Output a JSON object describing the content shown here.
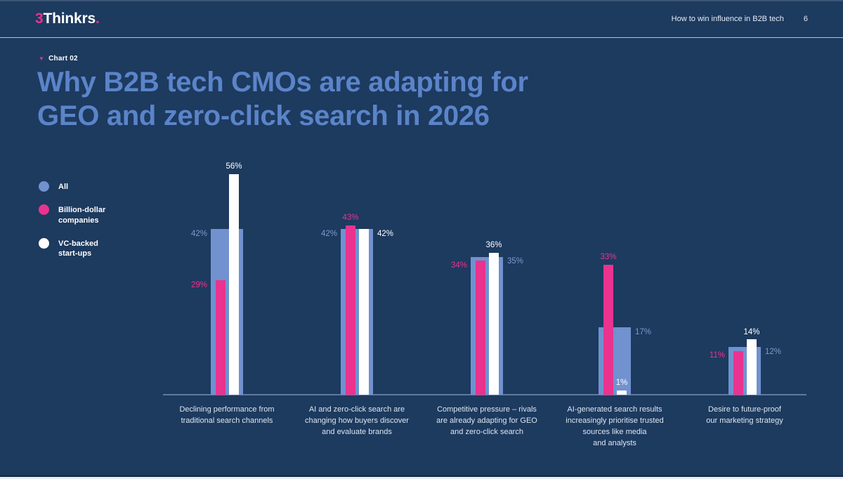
{
  "header": {
    "brand": {
      "prefix": "3",
      "name": "Thinkrs",
      "dot": "."
    },
    "doc_title": "How to win influence in B2B tech",
    "page_number": "6"
  },
  "eyebrow": {
    "marker": "▼",
    "label": "Chart 02"
  },
  "title": "Why B2B tech CMOs are adapting for\nGEO and zero-click search in 2026",
  "legend": {
    "items": [
      {
        "label": "All",
        "color": "#7191cf"
      },
      {
        "label": "Billion-dollar\ncompanies",
        "color": "#e9338f"
      },
      {
        "label": "VC-backed\nstart-ups",
        "color": "#ffffff"
      }
    ]
  },
  "chart_data": {
    "type": "bar",
    "unit": "%",
    "ylim": [
      0,
      60
    ],
    "grid": false,
    "legend_position": "left",
    "categories": [
      "Declining performance from\ntraditional search channels",
      "AI and zero-click search are\nchanging how buyers discover\nand evaluate brands",
      "Competitive pressure – rivals\nare already adapting for GEO\nand zero-click search",
      "AI-generated search results\nincreasingly prioritise trusted\nsources like media\nand analysts",
      "Desire to future-proof\nour marketing strategy"
    ],
    "series": [
      {
        "key": "all",
        "name": "All",
        "values": [
          42,
          42,
          35,
          17,
          12
        ],
        "color": "#7191cf",
        "label_color": "#8099cb",
        "value_label_placement": [
          "left",
          "left",
          "right",
          "right",
          "right"
        ]
      },
      {
        "key": "billion",
        "name": "Billion-dollar companies",
        "values": [
          29,
          43,
          34,
          33,
          11
        ],
        "color": "#e9338f",
        "label_color": "#e9338f",
        "value_label_placement": [
          "left",
          "above",
          "left",
          "above",
          "left"
        ]
      },
      {
        "key": "vc",
        "name": "VC-backed start-ups",
        "values": [
          56,
          42,
          36,
          1,
          14
        ],
        "color": "#ffffff",
        "label_color": "#ffffff",
        "value_label_placement": [
          "above",
          "right",
          "above",
          "above",
          "above"
        ]
      }
    ],
    "title": "Why B2B tech CMOs are adapting for GEO and zero-click search in 2026"
  },
  "colors": {
    "background": "#1d3a5f",
    "title_blue": "#5b84c9",
    "accent_pink": "#e9338f",
    "bar_blue": "#7191cf",
    "header_rule": "#a9c3e1",
    "axis_line": "#5f7a9e"
  }
}
